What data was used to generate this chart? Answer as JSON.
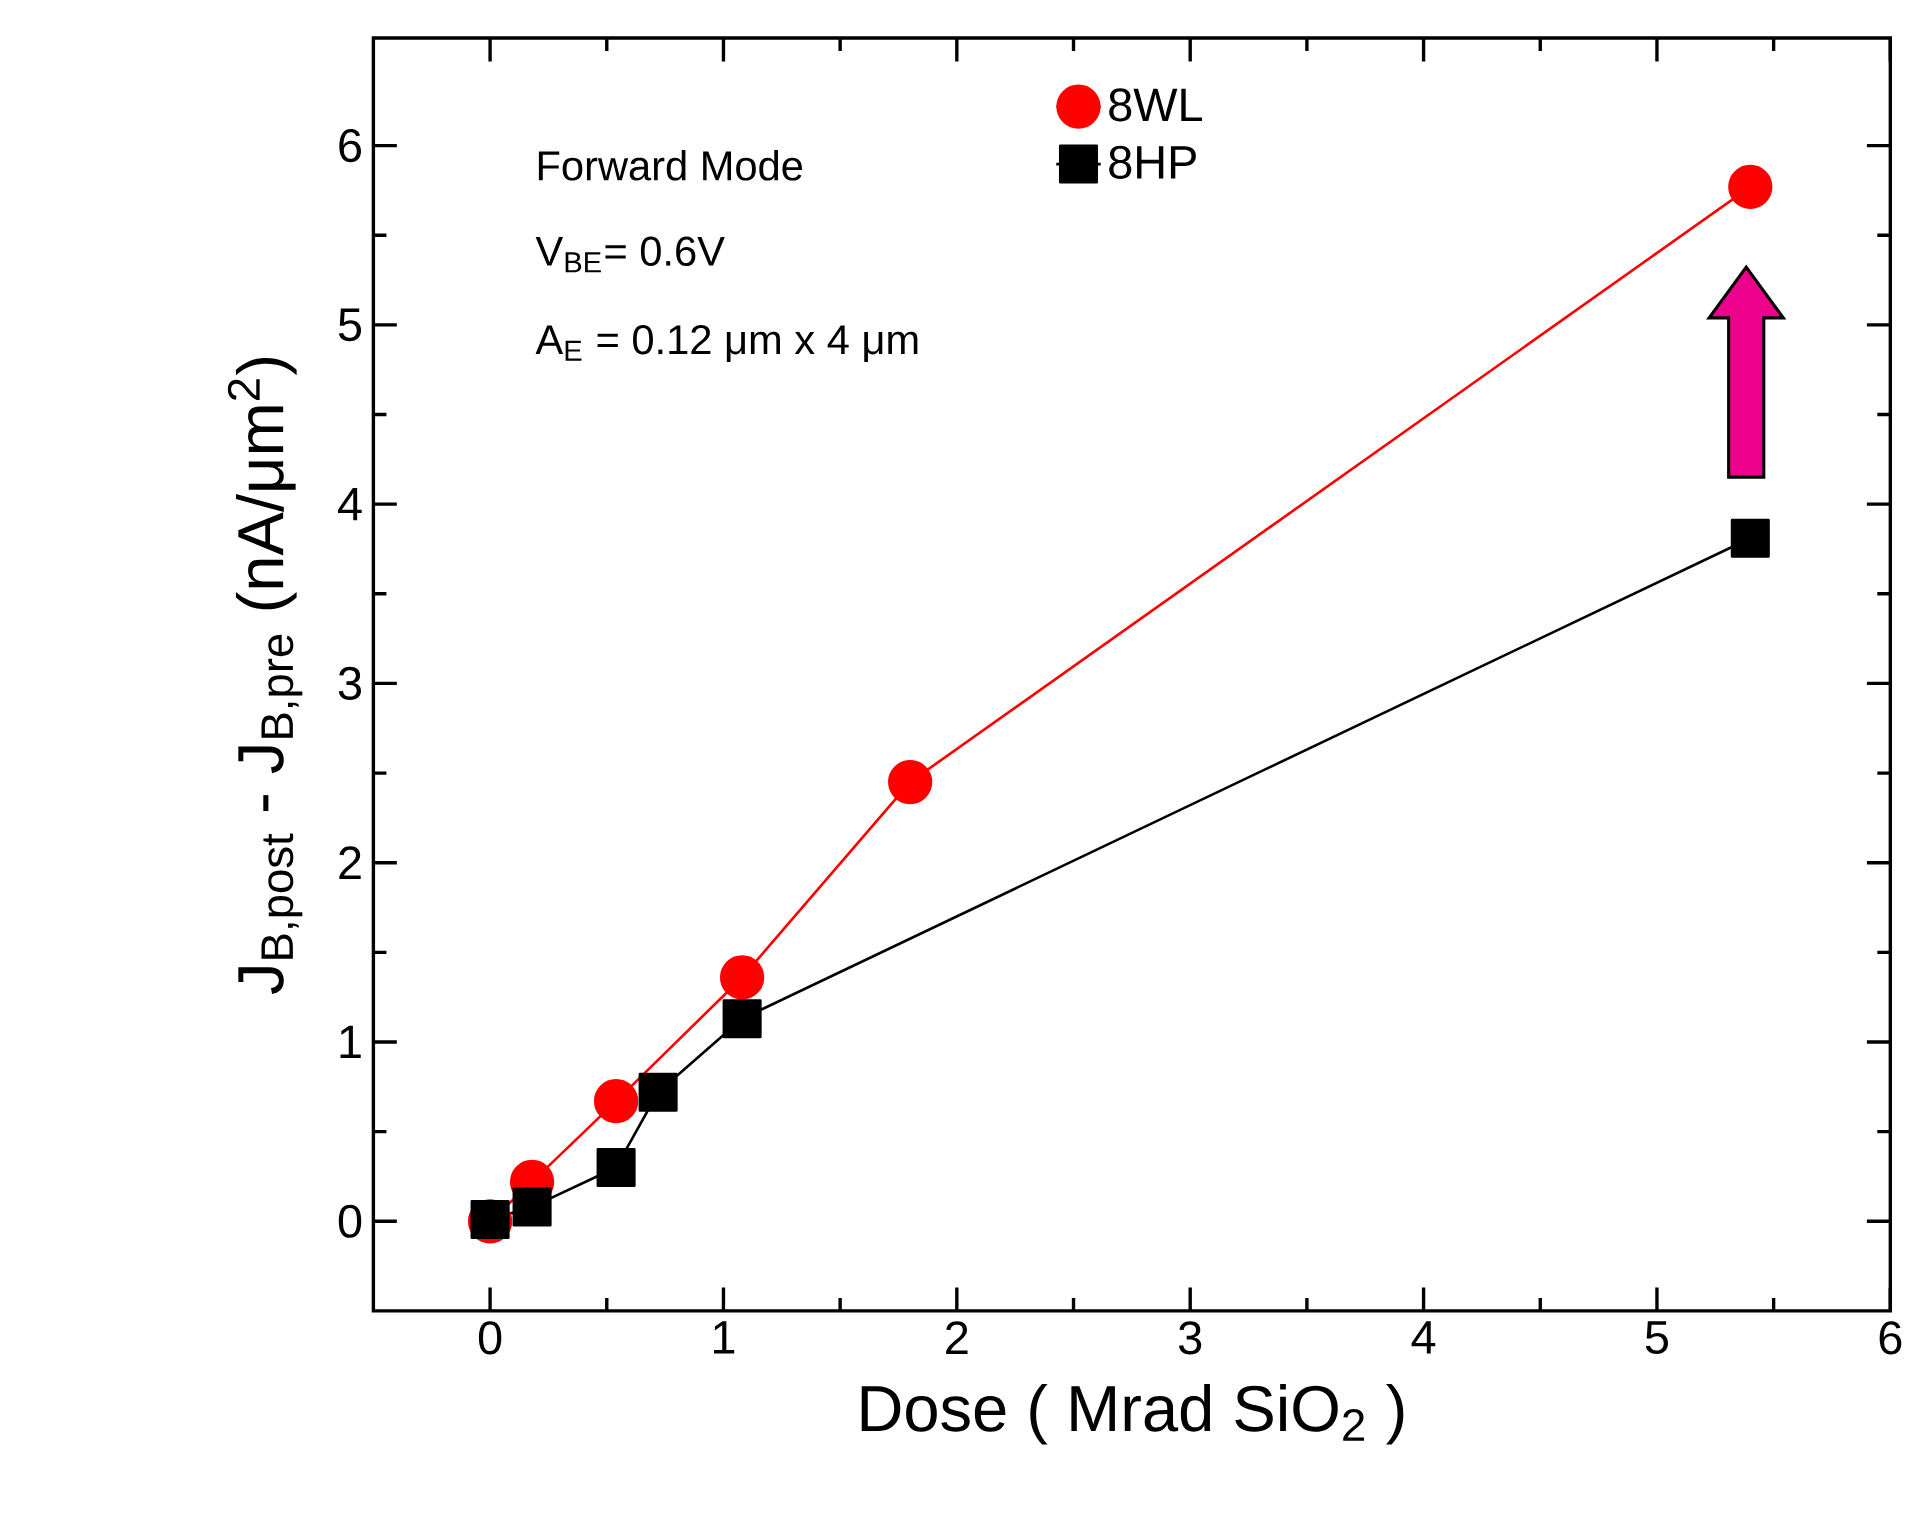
{
  "chart_data": {
    "type": "line",
    "xlabel": "Dose ( Mrad SiO$_{2}$ )",
    "ylabel": "J$_{B,post}$ - J$_{B,pre}$ (nA/μm$^{2}$)",
    "annotations": [
      "Forward Mode",
      "V$_{BE}$= 0.6V",
      "A$_{E}$ = 0.12 μm x 4 μm"
    ],
    "xlim": [
      -0.5,
      6
    ],
    "ylim": [
      -0.5,
      6.6
    ],
    "xticks": [
      0,
      1,
      2,
      3,
      4,
      5,
      6
    ],
    "yticks": [
      0,
      1,
      2,
      3,
      4,
      5,
      6
    ],
    "grid": false,
    "legend": "top",
    "line_style": "solid",
    "series": [
      {
        "name": "8WL",
        "color": "#ff0000",
        "marker": "circle",
        "x": [
          0,
          0.18,
          0.54,
          1.08,
          1.8,
          5.4
        ],
        "values": [
          0,
          0.22,
          0.67,
          1.36,
          2.45,
          5.77
        ]
      },
      {
        "name": "8HP",
        "color": "#000000",
        "marker": "square",
        "x": [
          0,
          0.18,
          0.54,
          0.72,
          1.08,
          5.4
        ],
        "values": [
          0.01,
          0.08,
          0.3,
          0.72,
          1.13,
          3.81
        ]
      }
    ]
  }
}
